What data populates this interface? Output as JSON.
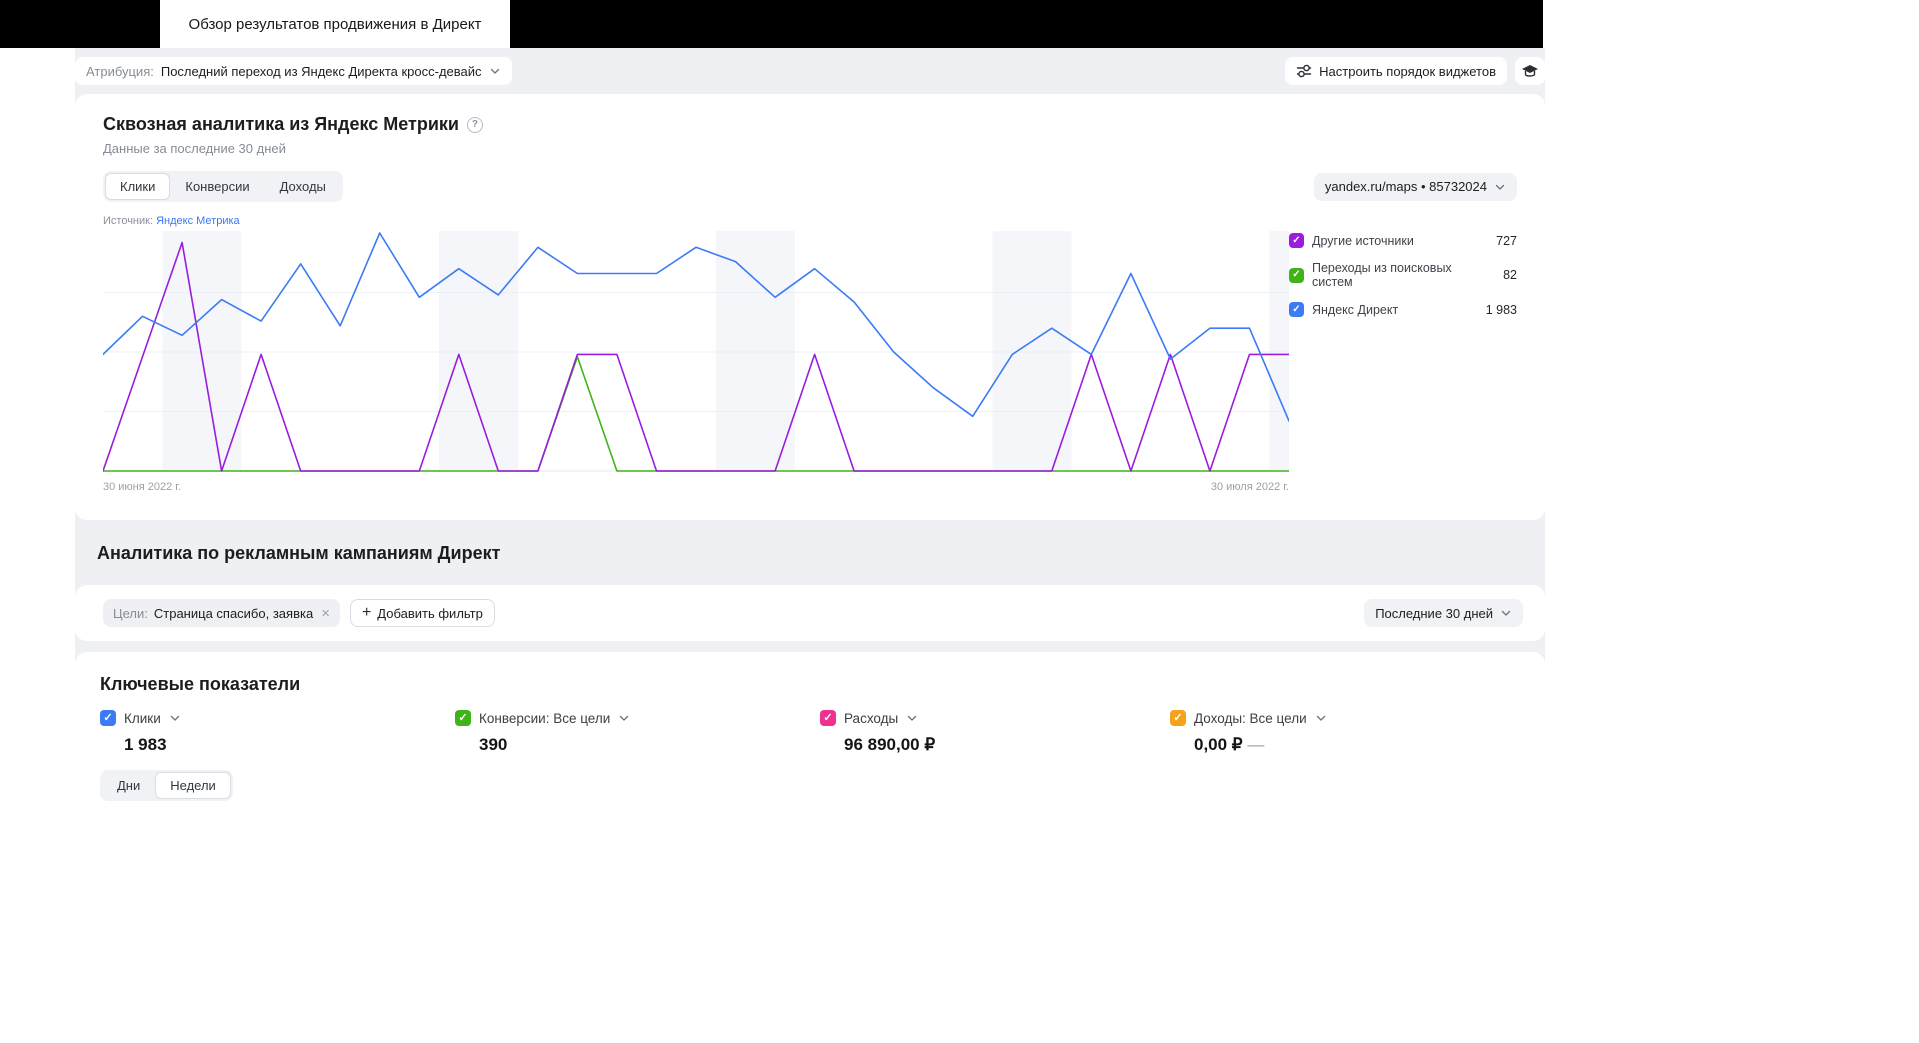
{
  "header": {
    "tab_title": "Обзор результатов продвижения в Директ"
  },
  "toolbar": {
    "attribution_label": "Атрибуция:",
    "attribution_value": "Последний переход из Яндекс Директа кросс-девайс",
    "configure_widgets": "Настроить порядок виджетов"
  },
  "metrika_card": {
    "title": "Сквозная аналитика из Яндекс Метрики",
    "subtitle": "Данные за последние 30 дней",
    "tabs": [
      "Клики",
      "Конверсии",
      "Доходы"
    ],
    "active_tab": "Клики",
    "counter_select": "yandex.ru/maps • 85732024",
    "source_label": "Источник:",
    "source_link": "Яндекс Метрика",
    "x_start": "30 июня 2022 г.",
    "x_end": "30 июля 2022 г.",
    "legend": [
      {
        "label": "Другие источники",
        "value": "727",
        "color": "#9a1ce0"
      },
      {
        "label": "Переходы из поисковых систем",
        "value": "82",
        "color": "#3fb418"
      },
      {
        "label": "Яндекс Директ",
        "value": "1 983",
        "color": "#3b7bf5"
      }
    ]
  },
  "chart_data": {
    "type": "line",
    "title": "Сквозная аналитика из Яндекс Метрики — Клики",
    "x_range": [
      "30 июня 2022 г.",
      "30 июля 2022 г."
    ],
    "x_days": 31,
    "ylim": [
      0,
      100
    ],
    "grid": "horizontal",
    "legend_position": "right",
    "weekend_bands": [
      [
        2,
        3
      ],
      [
        9,
        10
      ],
      [
        16,
        17
      ],
      [
        23,
        24
      ],
      [
        30,
        30
      ]
    ],
    "series": [
      {
        "name": "Яндекс Директ",
        "color": "#3b7bf5",
        "total": "1 983",
        "values": [
          49,
          65,
          57,
          72,
          63,
          87,
          61,
          100,
          73,
          85,
          74,
          94,
          83,
          83,
          83,
          94,
          88,
          73,
          85,
          71,
          50,
          35,
          23,
          49,
          60,
          49,
          83,
          47,
          60,
          60,
          21
        ]
      },
      {
        "name": "Другие источники",
        "color": "#9a1ce0",
        "total": "727",
        "values": [
          0,
          48,
          96,
          0,
          49,
          0,
          0,
          0,
          0,
          49,
          0,
          0,
          49,
          49,
          0,
          0,
          0,
          0,
          49,
          0,
          0,
          0,
          0,
          0,
          0,
          49,
          0,
          49,
          0,
          49,
          49
        ]
      },
      {
        "name": "Переходы из поисковых систем",
        "color": "#3fb418",
        "total": "82",
        "values": [
          0,
          0,
          0,
          0,
          0,
          0,
          0,
          0,
          0,
          0,
          0,
          0,
          48,
          0,
          0,
          0,
          0,
          0,
          0,
          0,
          0,
          0,
          0,
          0,
          0,
          0,
          0,
          0,
          0,
          0,
          0
        ]
      }
    ]
  },
  "section": {
    "title": "Аналитика по рекламным кампаниям Директ"
  },
  "filters": {
    "chip_label": "Цели:",
    "chip_value": "Страница спасибо, заявка",
    "add_filter": "Добавить фильтр",
    "period": "Последние 30 дней"
  },
  "kpi": {
    "title": "Ключевые показатели",
    "metrics": [
      {
        "label": "Клики",
        "value": "1 983",
        "color": "#3b7bf5"
      },
      {
        "label": "Конверсии: Все цели",
        "value": "390",
        "color": "#3fb418"
      },
      {
        "label": "Расходы",
        "value": "96 890,00 ₽",
        "color": "#ef3190"
      },
      {
        "label": "Доходы: Все цели",
        "value": "0,00 ₽",
        "suffix": "—",
        "color": "#f6a21a"
      }
    ],
    "toggle": [
      "Дни",
      "Недели"
    ],
    "active_toggle": "Недели"
  }
}
